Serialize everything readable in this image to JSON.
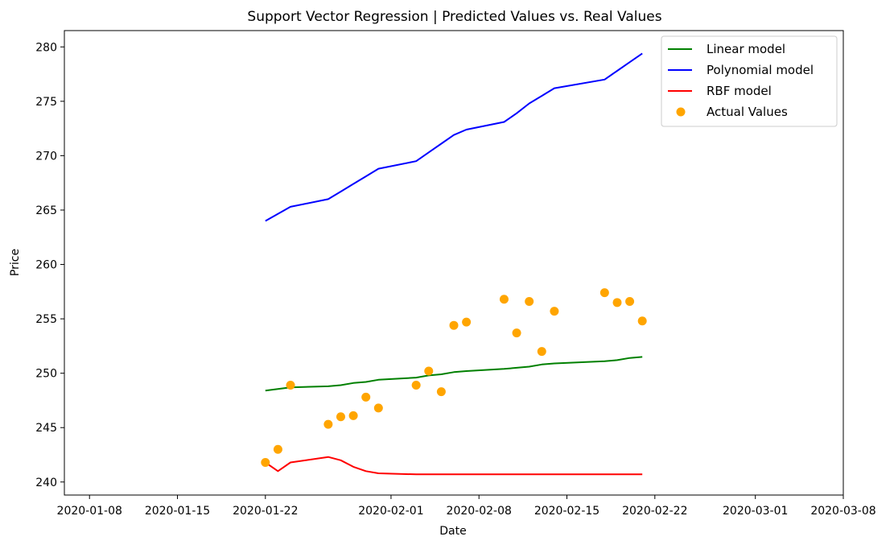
{
  "chart_data": {
    "type": "line",
    "title": "Support Vector Regression | Predicted Values vs. Real Values",
    "xlabel": "Date",
    "ylabel": "Price",
    "x_axis": {
      "type": "date",
      "range": [
        "2020-01-06",
        "2020-03-08"
      ],
      "ticks": [
        "2020-01-08",
        "2020-01-15",
        "2020-01-22",
        "2020-02-01",
        "2020-02-08",
        "2020-02-15",
        "2020-02-22",
        "2020-03-01",
        "2020-03-08"
      ]
    },
    "y_axis": {
      "range": [
        238.8,
        281.5
      ],
      "ticks": [
        240,
        245,
        250,
        255,
        260,
        265,
        270,
        275,
        280
      ]
    },
    "grid": false,
    "legend_position": "top-right",
    "series": [
      {
        "name": "Linear model",
        "kind": "line",
        "color": "#008000",
        "points": [
          {
            "x": "2020-01-22",
            "y": 248.4
          },
          {
            "x": "2020-01-24",
            "y": 248.7
          },
          {
            "x": "2020-01-27",
            "y": 248.8
          },
          {
            "x": "2020-01-28",
            "y": 248.9
          },
          {
            "x": "2020-01-29",
            "y": 249.1
          },
          {
            "x": "2020-01-30",
            "y": 249.2
          },
          {
            "x": "2020-01-31",
            "y": 249.4
          },
          {
            "x": "2020-02-03",
            "y": 249.6
          },
          {
            "x": "2020-02-04",
            "y": 249.8
          },
          {
            "x": "2020-02-05",
            "y": 249.9
          },
          {
            "x": "2020-02-06",
            "y": 250.1
          },
          {
            "x": "2020-02-07",
            "y": 250.2
          },
          {
            "x": "2020-02-10",
            "y": 250.4
          },
          {
            "x": "2020-02-11",
            "y": 250.5
          },
          {
            "x": "2020-02-12",
            "y": 250.6
          },
          {
            "x": "2020-02-13",
            "y": 250.8
          },
          {
            "x": "2020-02-14",
            "y": 250.9
          },
          {
            "x": "2020-02-18",
            "y": 251.1
          },
          {
            "x": "2020-02-19",
            "y": 251.2
          },
          {
            "x": "2020-02-20",
            "y": 251.4
          },
          {
            "x": "2020-02-21",
            "y": 251.5
          }
        ]
      },
      {
        "name": "Polynomial model",
        "kind": "line",
        "color": "#0000ff",
        "points": [
          {
            "x": "2020-01-22",
            "y": 264.0
          },
          {
            "x": "2020-01-24",
            "y": 265.3
          },
          {
            "x": "2020-01-27",
            "y": 266.0
          },
          {
            "x": "2020-01-28",
            "y": 266.7
          },
          {
            "x": "2020-01-29",
            "y": 267.4
          },
          {
            "x": "2020-01-30",
            "y": 268.1
          },
          {
            "x": "2020-01-31",
            "y": 268.8
          },
          {
            "x": "2020-02-03",
            "y": 269.5
          },
          {
            "x": "2020-02-04",
            "y": 270.3
          },
          {
            "x": "2020-02-05",
            "y": 271.1
          },
          {
            "x": "2020-02-06",
            "y": 271.9
          },
          {
            "x": "2020-02-07",
            "y": 272.4
          },
          {
            "x": "2020-02-10",
            "y": 273.1
          },
          {
            "x": "2020-02-11",
            "y": 273.9
          },
          {
            "x": "2020-02-12",
            "y": 274.8
          },
          {
            "x": "2020-02-13",
            "y": 275.5
          },
          {
            "x": "2020-02-14",
            "y": 276.2
          },
          {
            "x": "2020-02-18",
            "y": 277.0
          },
          {
            "x": "2020-02-19",
            "y": 277.8
          },
          {
            "x": "2020-02-20",
            "y": 278.6
          },
          {
            "x": "2020-02-21",
            "y": 279.4
          }
        ]
      },
      {
        "name": "RBF model",
        "kind": "line",
        "color": "#ff0000",
        "points": [
          {
            "x": "2020-01-22",
            "y": 241.8
          },
          {
            "x": "2020-01-23",
            "y": 241.0
          },
          {
            "x": "2020-01-24",
            "y": 241.8
          },
          {
            "x": "2020-01-27",
            "y": 242.3
          },
          {
            "x": "2020-01-28",
            "y": 242.0
          },
          {
            "x": "2020-01-29",
            "y": 241.4
          },
          {
            "x": "2020-01-30",
            "y": 241.0
          },
          {
            "x": "2020-01-31",
            "y": 240.8
          },
          {
            "x": "2020-02-03",
            "y": 240.7
          },
          {
            "x": "2020-02-04",
            "y": 240.7
          },
          {
            "x": "2020-02-05",
            "y": 240.7
          },
          {
            "x": "2020-02-06",
            "y": 240.7
          },
          {
            "x": "2020-02-07",
            "y": 240.7
          },
          {
            "x": "2020-02-10",
            "y": 240.7
          },
          {
            "x": "2020-02-11",
            "y": 240.7
          },
          {
            "x": "2020-02-12",
            "y": 240.7
          },
          {
            "x": "2020-02-13",
            "y": 240.7
          },
          {
            "x": "2020-02-14",
            "y": 240.7
          },
          {
            "x": "2020-02-18",
            "y": 240.7
          },
          {
            "x": "2020-02-19",
            "y": 240.7
          },
          {
            "x": "2020-02-20",
            "y": 240.7
          },
          {
            "x": "2020-02-21",
            "y": 240.7
          }
        ]
      },
      {
        "name": "Actual Values",
        "kind": "scatter",
        "color": "#ffa500",
        "points": [
          {
            "x": "2020-01-22",
            "y": 241.8
          },
          {
            "x": "2020-01-23",
            "y": 243.0
          },
          {
            "x": "2020-01-24",
            "y": 248.9
          },
          {
            "x": "2020-01-27",
            "y": 245.3
          },
          {
            "x": "2020-01-28",
            "y": 246.0
          },
          {
            "x": "2020-01-29",
            "y": 246.1
          },
          {
            "x": "2020-01-30",
            "y": 247.8
          },
          {
            "x": "2020-01-31",
            "y": 246.8
          },
          {
            "x": "2020-02-03",
            "y": 248.9
          },
          {
            "x": "2020-02-04",
            "y": 250.2
          },
          {
            "x": "2020-02-05",
            "y": 248.3
          },
          {
            "x": "2020-02-06",
            "y": 254.4
          },
          {
            "x": "2020-02-07",
            "y": 254.7
          },
          {
            "x": "2020-02-10",
            "y": 256.8
          },
          {
            "x": "2020-02-11",
            "y": 253.7
          },
          {
            "x": "2020-02-12",
            "y": 256.6
          },
          {
            "x": "2020-02-13",
            "y": 252.0
          },
          {
            "x": "2020-02-14",
            "y": 255.7
          },
          {
            "x": "2020-02-18",
            "y": 257.4
          },
          {
            "x": "2020-02-19",
            "y": 256.5
          },
          {
            "x": "2020-02-20",
            "y": 256.6
          },
          {
            "x": "2020-02-21",
            "y": 254.8
          }
        ]
      }
    ]
  }
}
